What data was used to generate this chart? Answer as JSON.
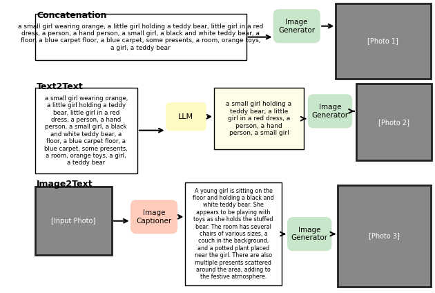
{
  "title_concatenation": "Concatenation",
  "title_text2text": "Text2Text",
  "title_image2text": "Image2Text",
  "concat_text": "a small girl wearing orange, a little girl holding a teddy bear, little girl in a red\ndress, a person, a hand person, a small girl, a black and white teddy bear, a\nfloor, a blue carpet floor, a blue carpet, some presents, a room, orange toys,\na girl, a teddy bear",
  "t2t_input_text": "a small girl wearing orange,\na little girl holding a teddy\nbear, little girl in a red\ndress, a person, a hand\nperson, a small girl, a black\nand white teddy bear, a\nfloor, a blue carpet floor, a\nblue carpet, some presents,\na room, orange toys, a girl,\na teddy bear",
  "t2t_output_text": "a small girl holding a\nteddy bear, a little\ngirl in a red dress, a\nperson, a hand\nperson, a small girl",
  "i2t_caption_text": "A young girl is sitting on the\nfloor and holding a black and\nwhite teddy bear. She\nappears to be playing with\ntoys as she holds the stuffed\nbear. The room has several\nchairs of various sizes, a\ncouch in the background,\nand a potted plant placed\nnear the girl. There are also\nmultiple presents scattered\naround the area, adding to\nthe festive atmosphere.",
  "llm_label": "LLM",
  "image_gen_label": "Image\nGenerator",
  "image_captioner_label": "Image\nCaptioner",
  "color_white_box": "#ffffff",
  "color_border": "#000000",
  "color_green_box": "#c8e6c9",
  "color_yellow_box": "#fff9c4",
  "color_peach_box": "#ffccbc",
  "color_title_bg": "#ffffff",
  "background_color": "#ffffff"
}
